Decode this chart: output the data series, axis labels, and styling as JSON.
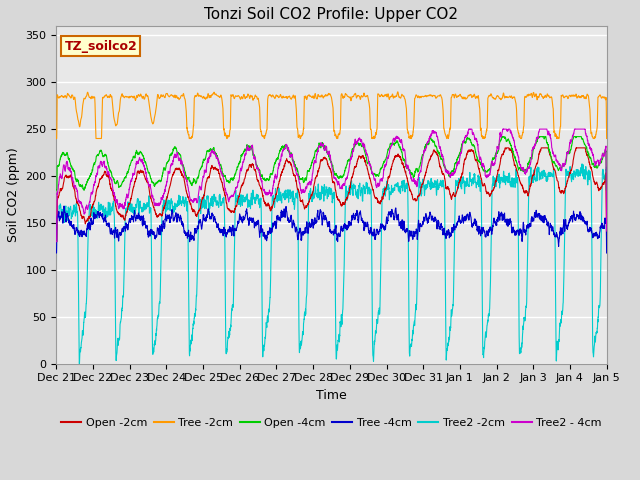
{
  "title": "Tonzi Soil CO2 Profile: Upper CO2",
  "ylabel": "Soil CO2 (ppm)",
  "xlabel": "Time",
  "dataset_label": "TZ_soilco2",
  "ylim": [
    0,
    360
  ],
  "yticks": [
    0,
    50,
    100,
    150,
    200,
    250,
    300,
    350
  ],
  "x_tick_labels": [
    "Dec 21",
    "Dec 22",
    "Dec 23",
    "Dec 24",
    "Dec 25",
    "Dec 26",
    "Dec 27",
    "Dec 28",
    "Dec 29",
    "Dec 30",
    "Dec 31",
    "Jan 1",
    "Jan 2",
    "Jan 3",
    "Jan 4",
    "Jan 5"
  ],
  "series": [
    {
      "name": "Open -2cm",
      "color": "#cc0000",
      "lw": 0.8
    },
    {
      "name": "Tree -2cm",
      "color": "#ff9900",
      "lw": 0.8
    },
    {
      "name": "Open -4cm",
      "color": "#00cc00",
      "lw": 0.8
    },
    {
      "name": "Tree -4cm",
      "color": "#0000cc",
      "lw": 0.8
    },
    {
      "name": "Tree2 -2cm",
      "color": "#00cccc",
      "lw": 0.8
    },
    {
      "name": "Tree2 - 4cm",
      "color": "#cc00cc",
      "lw": 0.8
    }
  ],
  "fig_bg_color": "#d8d8d8",
  "plot_bg_color": "#e8e8e8",
  "grid_color": "#ffffff",
  "title_fontsize": 11,
  "axis_fontsize": 9,
  "tick_fontsize": 8,
  "legend_fontsize": 8,
  "n_points": 3360
}
